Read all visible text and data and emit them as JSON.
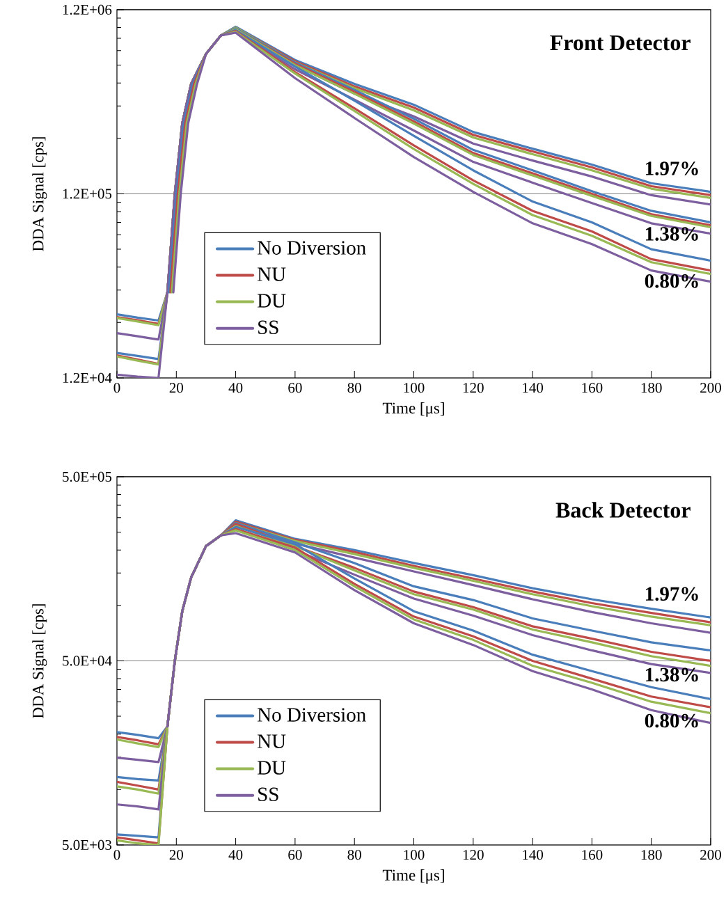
{
  "chart_data": [
    {
      "type": "line",
      "title": "Front Detector",
      "xlabel": "Time [μs]",
      "ylabel": "DDA Signal [cps]",
      "log": "y",
      "grid": "y",
      "legend": "bottom left",
      "marker": "none",
      "line_style": "solid",
      "xlim": [
        0,
        200
      ],
      "xticks": [
        0,
        20,
        40,
        60,
        80,
        100,
        120,
        140,
        160,
        180,
        200
      ],
      "ylim": [
        12000,
        1200000
      ],
      "yticks": [
        {
          "value": 12000,
          "label": "1.2E+04"
        },
        {
          "value": 120000,
          "label": "1.2E+05"
        },
        {
          "value": 1200000,
          "label": "1.2E+06"
        }
      ],
      "x": [
        0,
        7,
        14,
        17,
        19.5,
        22,
        25,
        30,
        35,
        40,
        60,
        80,
        100,
        120,
        140,
        160,
        180,
        200
      ],
      "series": [
        {
          "name": "No Diversion",
          "color": "#4a7ebb",
          "values": [
            26600,
            25500,
            24600,
            35000,
            120000,
            290000,
            475000,
            690000,
            870000,
            970000,
            640000,
            475000,
            366000,
            260000,
            211000,
            173000,
            137000,
            123000
          ]
        },
        {
          "name": "NU",
          "color": "#be4b48",
          "values": [
            25700,
            24700,
            23600,
            35000,
            120000,
            290000,
            475000,
            690000,
            870000,
            960000,
            630000,
            460000,
            353000,
            251000,
            204000,
            167000,
            132000,
            118000
          ]
        },
        {
          "name": "DU",
          "color": "#98b954",
          "values": [
            25400,
            24300,
            23200,
            35000,
            120000,
            290000,
            475000,
            690000,
            870000,
            960000,
            620000,
            450000,
            341000,
            243000,
            197000,
            161000,
            128000,
            114000
          ]
        },
        {
          "name": "SS",
          "color": "#7d5fa0",
          "values": [
            21000,
            20200,
            19400,
            35000,
            120000,
            290000,
            475000,
            690000,
            870000,
            940000,
            600000,
            420000,
            316000,
            225000,
            182000,
            149000,
            118000,
            105000
          ]
        },
        {
          "color": "#4a7ebb",
          "values": [
            16400,
            15800,
            15200,
            35000,
            120000,
            290000,
            475000,
            690000,
            870000,
            950000,
            620000,
            440000,
            307000,
            208000,
            161000,
            124000,
            97000,
            84000
          ]
        },
        {
          "color": "#be4b48",
          "values": [
            15900,
            15100,
            14300,
            35000,
            120000,
            290000,
            475000,
            690000,
            870000,
            940000,
            610000,
            430000,
            297000,
            200000,
            155000,
            120000,
            93000,
            81000
          ]
        },
        {
          "color": "#98b954",
          "values": [
            15700,
            14900,
            14200,
            35000,
            120000,
            290000,
            475000,
            690000,
            870000,
            940000,
            600000,
            420000,
            289000,
            195000,
            151000,
            117000,
            91000,
            79000
          ]
        },
        {
          "color": "#7d5fa0",
          "values": [
            12500,
            12200,
            12000,
            35000,
            120000,
            290000,
            475000,
            690000,
            870000,
            920000,
            570000,
            390000,
            265000,
            179000,
            138000,
            107000,
            83000,
            73000
          ]
        },
        {
          "color": "#4a7ebb",
          "x": [
            17.5,
            20,
            22.5,
            25.5,
            30,
            35,
            40,
            60,
            80,
            100,
            120,
            140,
            160,
            180,
            200
          ],
          "values": [
            35000,
            120000,
            290000,
            475000,
            690000,
            870000,
            930000,
            590000,
            385000,
            248000,
            161000,
            109000,
            84000,
            60000,
            52000
          ]
        },
        {
          "color": "#be4b48",
          "x": [
            18,
            20.5,
            23,
            26,
            30,
            35,
            40,
            60,
            80,
            100,
            120,
            140,
            160,
            180,
            200
          ],
          "values": [
            35000,
            120000,
            290000,
            475000,
            690000,
            870000,
            920000,
            550000,
            350000,
            220000,
            142000,
            97000,
            75000,
            53000,
            46000
          ]
        },
        {
          "color": "#98b954",
          "x": [
            18.5,
            21,
            23.5,
            26.5,
            30,
            35,
            40,
            60,
            80,
            100,
            120,
            140,
            160,
            180,
            200
          ],
          "values": [
            35000,
            120000,
            290000,
            475000,
            690000,
            870000,
            910000,
            540000,
            338000,
            210000,
            136000,
            92000,
            71000,
            51000,
            44000
          ]
        },
        {
          "color": "#7d5fa0",
          "x": [
            19,
            21.5,
            24,
            27,
            30,
            35,
            40,
            60,
            80,
            100,
            120,
            140,
            160,
            180,
            200
          ],
          "values": [
            35000,
            120000,
            290000,
            475000,
            690000,
            870000,
            900000,
            510000,
            310000,
            190000,
            123000,
            83000,
            64000,
            46000,
            40000
          ]
        }
      ],
      "annotations": [
        "1.97%",
        "1.38%",
        "0.80%"
      ]
    },
    {
      "type": "line",
      "title": "Back Detector",
      "xlabel": "Time [μs]",
      "ylabel": "DDA Signal [cps]",
      "log": "y",
      "grid": "y",
      "legend": "bottom left",
      "marker": "none",
      "line_style": "solid",
      "xlim": [
        0,
        200
      ],
      "xticks": [
        0,
        20,
        40,
        60,
        80,
        100,
        120,
        140,
        160,
        180,
        200
      ],
      "ylim": [
        5000,
        500000
      ],
      "yticks": [
        {
          "value": 5000,
          "label": "5.0E+03"
        },
        {
          "value": 50000,
          "label": "5.0E+04"
        },
        {
          "value": 500000,
          "label": "5.0E+05"
        }
      ],
      "x": [
        0,
        7,
        14,
        17,
        19.5,
        22,
        25,
        30,
        35,
        40,
        60,
        80,
        100,
        120,
        140,
        160,
        180,
        200
      ],
      "series": [
        {
          "name": "No Diversion",
          "color": "#4a7ebb",
          "values": [
            20500,
            19800,
            19000,
            22000,
            50000,
            93000,
            142000,
            210000,
            240000,
            290000,
            230000,
            200000,
            170000,
            146000,
            124000,
            108000,
            96000,
            86000
          ]
        },
        {
          "name": "NU",
          "color": "#be4b48",
          "values": [
            19300,
            18500,
            17600,
            22000,
            50000,
            93000,
            142000,
            210000,
            240000,
            285000,
            227000,
            195000,
            164000,
            140000,
            119000,
            103000,
            91000,
            81000
          ]
        },
        {
          "name": "DU",
          "color": "#98b954",
          "values": [
            18700,
            17800,
            17000,
            22000,
            50000,
            93000,
            142000,
            210000,
            240000,
            280000,
            224000,
            190000,
            160000,
            136000,
            115000,
            99000,
            87000,
            78000
          ]
        },
        {
          "name": "SS",
          "color": "#7d5fa0",
          "values": [
            14900,
            14500,
            14100,
            22000,
            50000,
            93000,
            142000,
            210000,
            240000,
            270000,
            217000,
            182000,
            153000,
            129000,
            108000,
            92000,
            80000,
            71000
          ]
        },
        {
          "color": "#4a7ebb",
          "values": [
            11700,
            11400,
            11200,
            22000,
            50000,
            93000,
            142000,
            210000,
            240000,
            280000,
            220000,
            170000,
            127000,
            107000,
            85000,
            73000,
            63000,
            57000
          ]
        },
        {
          "color": "#be4b48",
          "values": [
            11000,
            10500,
            10000,
            22000,
            50000,
            93000,
            142000,
            210000,
            240000,
            277000,
            210000,
            160000,
            119000,
            98000,
            77000,
            66000,
            56000,
            50000
          ]
        },
        {
          "color": "#98b954",
          "values": [
            10400,
            10000,
            9500,
            22000,
            50000,
            93000,
            142000,
            210000,
            240000,
            270000,
            210000,
            155000,
            115000,
            95000,
            74000,
            63000,
            53000,
            47000
          ]
        },
        {
          "color": "#7d5fa0",
          "values": [
            8300,
            8100,
            7800,
            22000,
            50000,
            93000,
            142000,
            210000,
            240000,
            260000,
            200000,
            147000,
            109000,
            88000,
            69000,
            57000,
            48000,
            43000
          ]
        },
        {
          "color": "#4a7ebb",
          "values": [
            5700,
            5600,
            5500,
            22000,
            50000,
            93000,
            142000,
            210000,
            240000,
            267000,
            215000,
            140000,
            93000,
            73000,
            54000,
            44000,
            36000,
            31000
          ]
        },
        {
          "color": "#be4b48",
          "values": [
            5500,
            5300,
            5100,
            22000,
            50000,
            93000,
            142000,
            210000,
            240000,
            260000,
            206000,
            131000,
            87000,
            68000,
            50000,
            40000,
            32000,
            28000
          ]
        },
        {
          "color": "#98b954",
          "values": [
            5300,
            5100,
            5000,
            22000,
            50000,
            93000,
            142000,
            210000,
            240000,
            256000,
            200000,
            127000,
            84000,
            65000,
            47000,
            38000,
            30000,
            26000
          ]
        },
        {
          "color": "#7d5fa0",
          "values": [
            null,
            null,
            null,
            22000,
            50000,
            93000,
            142000,
            210000,
            240000,
            247000,
            194000,
            121000,
            80000,
            61000,
            44000,
            35000,
            27000,
            23000
          ]
        }
      ],
      "annotations": [
        "1.97%",
        "1.38%",
        "0.80%"
      ]
    }
  ]
}
